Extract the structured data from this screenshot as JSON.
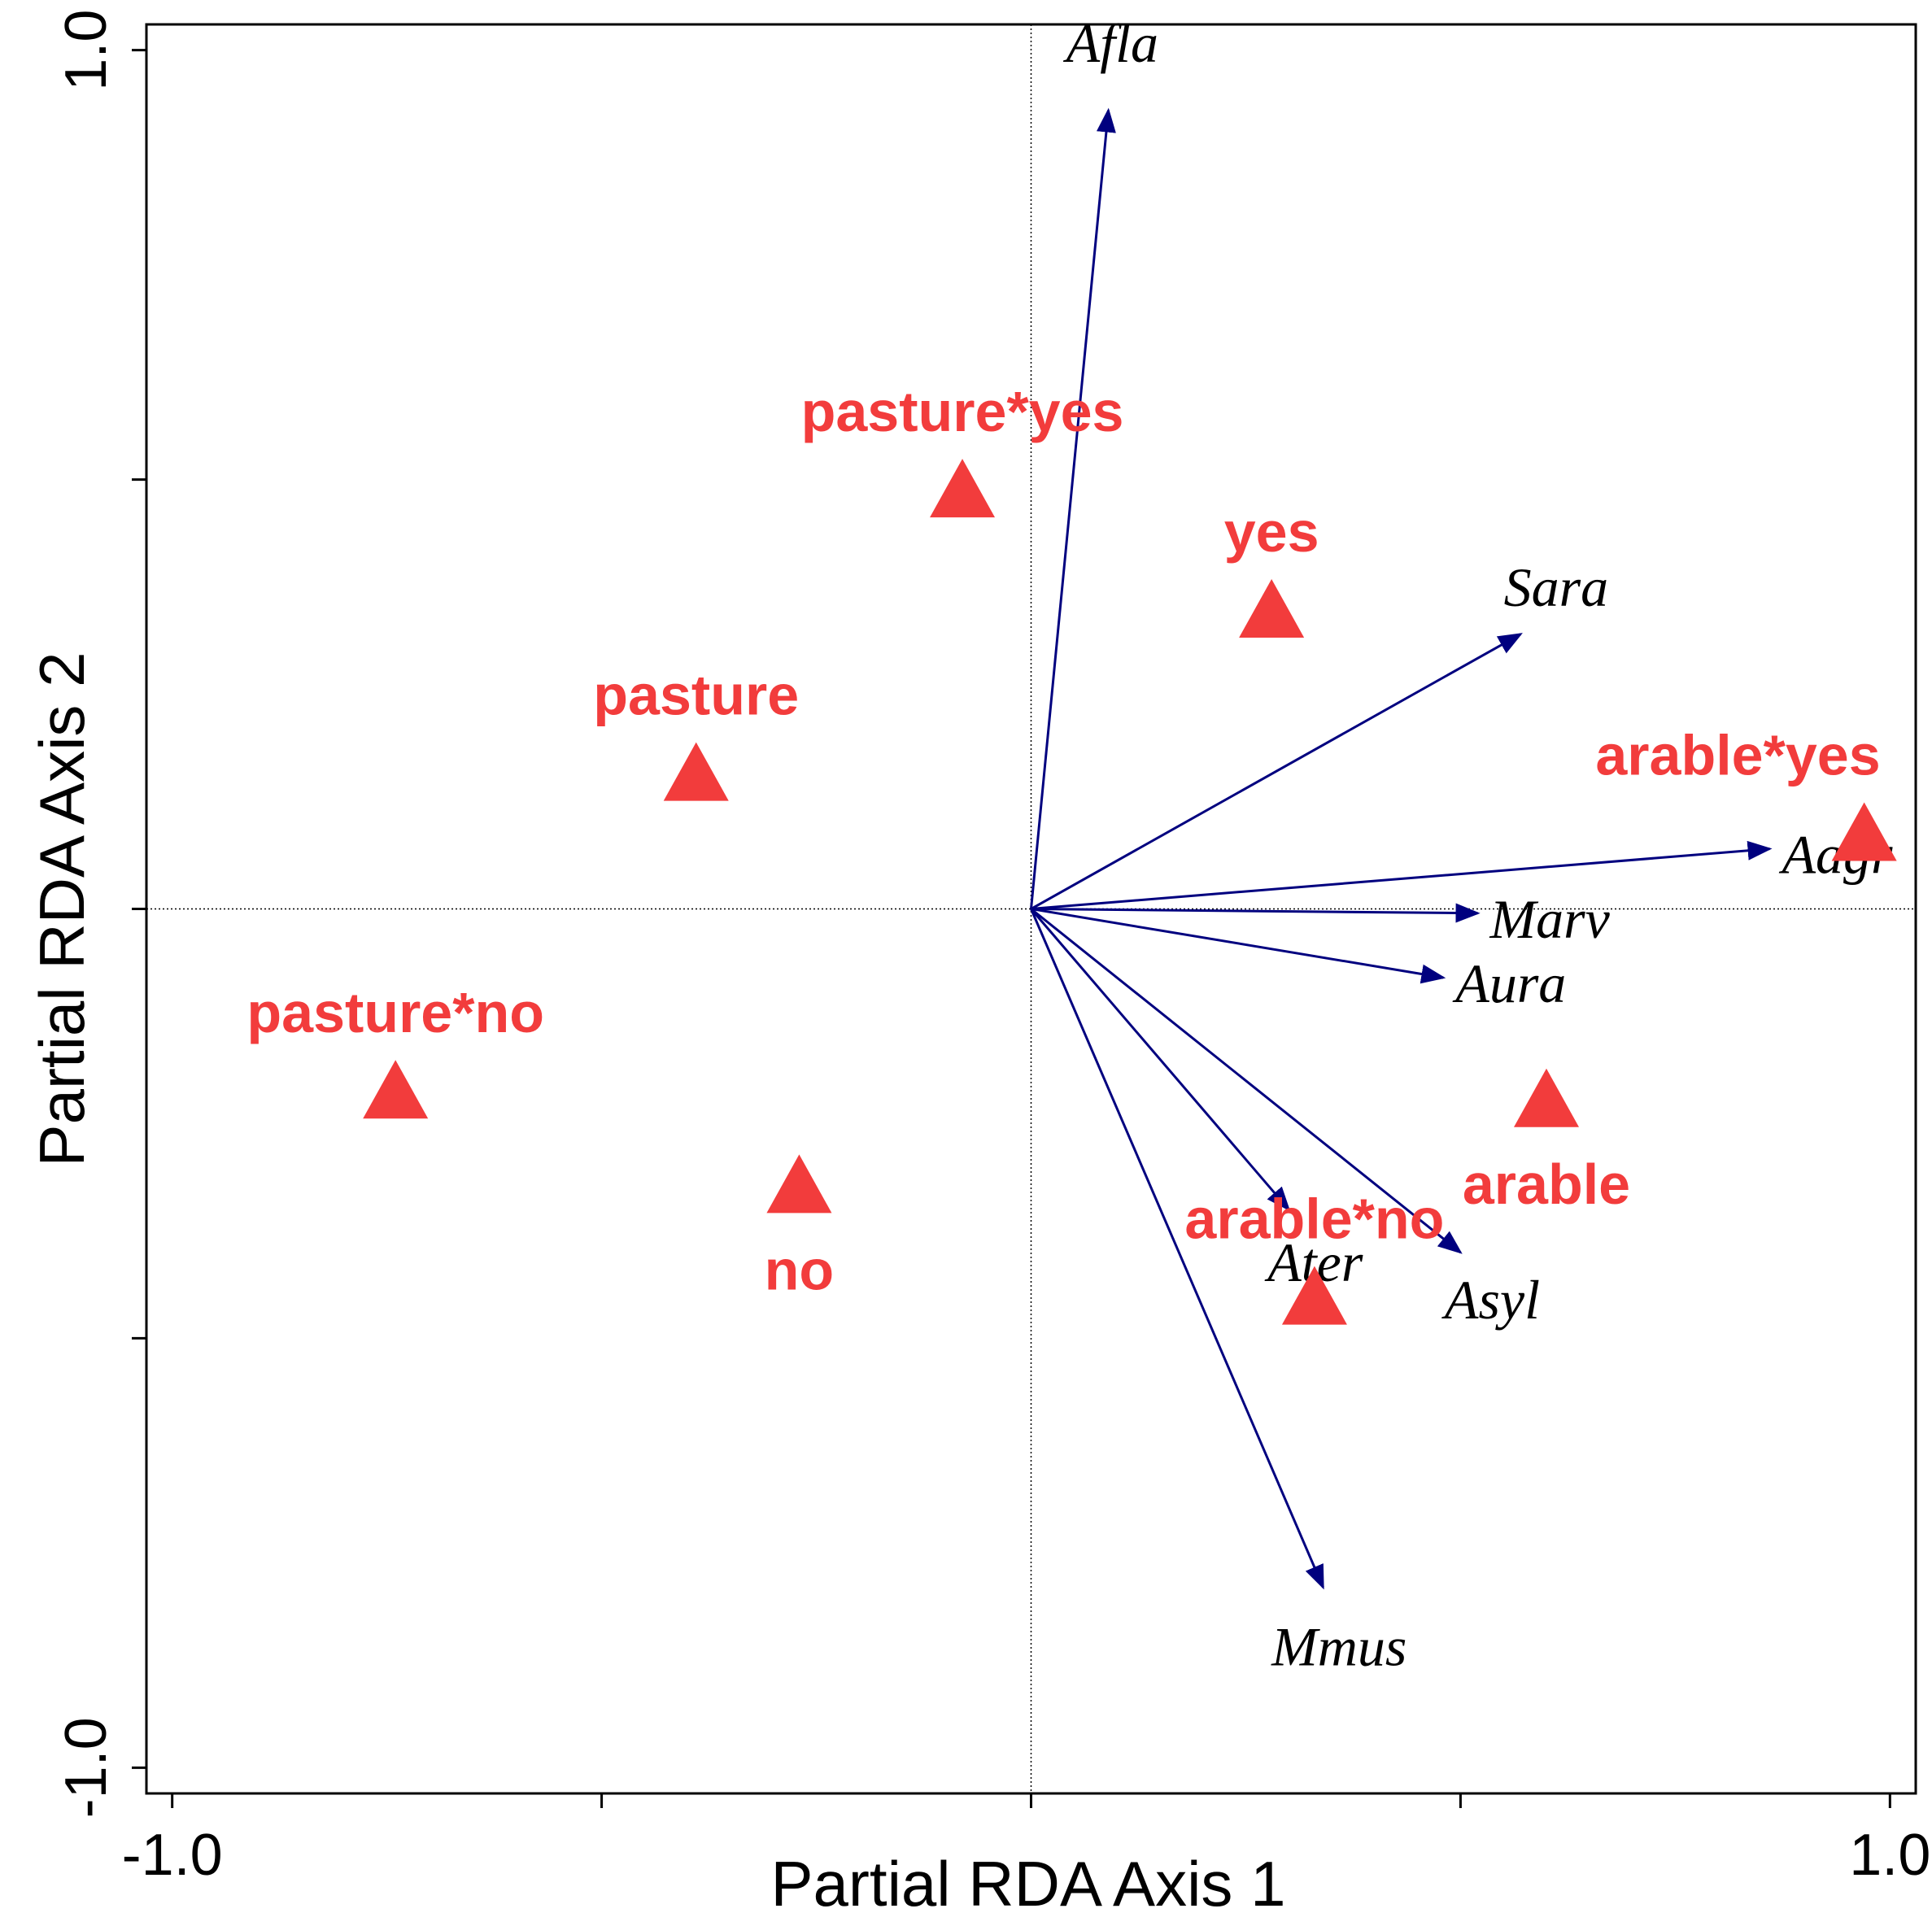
{
  "chart_data": {
    "type": "scatter",
    "subtype": "RDA biplot",
    "xlabel": "Partial RDA Axis 1",
    "ylabel": "Partial RDA Axis 2",
    "xlim": [
      -1.03,
      1.03
    ],
    "ylim": [
      -1.03,
      1.03
    ],
    "x_tick_values": [
      -1.0,
      -0.5,
      0.0,
      0.5,
      1.0
    ],
    "x_tick_labels": [
      "-1.0",
      "",
      "",
      "",
      "1.0"
    ],
    "y_tick_values": [
      -1.0,
      -0.5,
      0.0,
      0.5,
      1.0
    ],
    "y_tick_labels": [
      "-1.0",
      "",
      "",
      "",
      "1.0"
    ],
    "zero_lines": true,
    "species_arrows": [
      {
        "name": "Afla",
        "x": 0.09,
        "y": 0.93
      },
      {
        "name": "Sara",
        "x": 0.57,
        "y": 0.32
      },
      {
        "name": "Aagr",
        "x": 0.86,
        "y": 0.07
      },
      {
        "name": "Marv",
        "x": 0.52,
        "y": -0.005
      },
      {
        "name": "Aura",
        "x": 0.48,
        "y": -0.08
      },
      {
        "name": "Ater",
        "x": 0.3,
        "y": -0.35
      },
      {
        "name": "Asyl",
        "x": 0.5,
        "y": -0.4
      },
      {
        "name": "Mmus",
        "x": 0.34,
        "y": -0.79
      }
    ],
    "centroids": [
      {
        "name": "pasture*yes",
        "x": -0.08,
        "y": 0.49
      },
      {
        "name": "yes",
        "x": 0.28,
        "y": 0.35
      },
      {
        "name": "pasture",
        "x": -0.39,
        "y": 0.16
      },
      {
        "name": "arable*yes",
        "x": 0.97,
        "y": 0.09
      },
      {
        "name": "pasture*no",
        "x": -0.74,
        "y": -0.21
      },
      {
        "name": "arable",
        "x": 0.6,
        "y": -0.22
      },
      {
        "name": "no",
        "x": -0.27,
        "y": -0.32
      },
      {
        "name": "arable*no",
        "x": 0.33,
        "y": -0.45
      }
    ],
    "colors": {
      "arrow": "#00007f",
      "centroid": "#f23c3c",
      "axis": "#000000"
    }
  }
}
